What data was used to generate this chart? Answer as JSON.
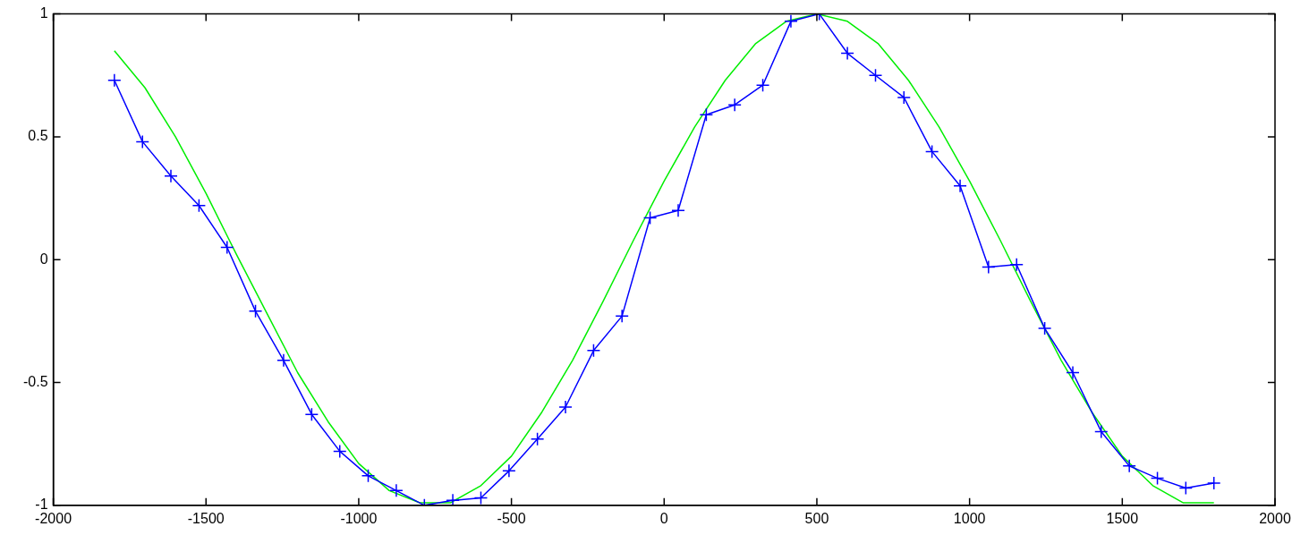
{
  "chart_data": {
    "type": "line",
    "xlim": [
      -2000,
      2000
    ],
    "ylim": [
      -1,
      1
    ],
    "xticks": [
      -2000,
      -1500,
      -1000,
      -500,
      0,
      500,
      1000,
      1500,
      2000
    ],
    "yticks": [
      -1,
      -0.5,
      0,
      0.5,
      1
    ],
    "grid": false,
    "legend": false,
    "marker": "cross",
    "line_style": "solid",
    "series": [
      {
        "color": "#00ee00",
        "marker": "none",
        "x": [
          -1800,
          -1700,
          -1600,
          -1500,
          -1400,
          -1300,
          -1200,
          -1100,
          -1000,
          -900,
          -800,
          -700,
          -600,
          -500,
          -400,
          -300,
          -200,
          -100,
          0,
          100,
          200,
          300,
          400,
          500,
          600,
          700,
          800,
          900,
          1000,
          1100,
          1200,
          1300,
          1400,
          1500,
          1600,
          1700,
          1800
        ],
        "values": [
          0.85,
          0.7,
          0.5,
          0.27,
          0.02,
          -0.22,
          -0.46,
          -0.66,
          -0.83,
          -0.94,
          -0.99,
          -0.99,
          -0.92,
          -0.8,
          -0.62,
          -0.41,
          -0.17,
          0.08,
          0.32,
          0.54,
          0.73,
          0.88,
          0.97,
          1,
          0.97,
          0.88,
          0.73,
          0.54,
          0.32,
          0.08,
          -0.17,
          -0.41,
          -0.62,
          -0.8,
          -0.92,
          -0.99,
          -0.99
        ]
      },
      {
        "color": "#0000ff",
        "x": [
          -1800,
          -1708,
          -1615,
          -1523,
          -1431,
          -1338,
          -1246,
          -1154,
          -1062,
          -969,
          -877,
          -785,
          -692,
          -600,
          -508,
          -415,
          -323,
          -231,
          -138,
          -46,
          46,
          138,
          231,
          323,
          415,
          508,
          600,
          692,
          785,
          877,
          969,
          1062,
          1154,
          1246,
          1338,
          1431,
          1523,
          1615,
          1708,
          1800
        ],
        "values": [
          0.73,
          0.48,
          0.34,
          0.22,
          0.05,
          -0.21,
          -0.41,
          -0.63,
          -0.78,
          -0.88,
          -0.94,
          -1,
          -0.98,
          -0.97,
          -0.86,
          -0.73,
          -0.6,
          -0.37,
          -0.23,
          0.17,
          0.2,
          0.59,
          0.63,
          0.71,
          0.97,
          1,
          0.84,
          0.75,
          0.66,
          0.44,
          0.3,
          -0.03,
          -0.02,
          -0.28,
          -0.46,
          -0.7,
          -0.84,
          -0.89,
          -0.93,
          -0.91
        ]
      }
    ]
  }
}
